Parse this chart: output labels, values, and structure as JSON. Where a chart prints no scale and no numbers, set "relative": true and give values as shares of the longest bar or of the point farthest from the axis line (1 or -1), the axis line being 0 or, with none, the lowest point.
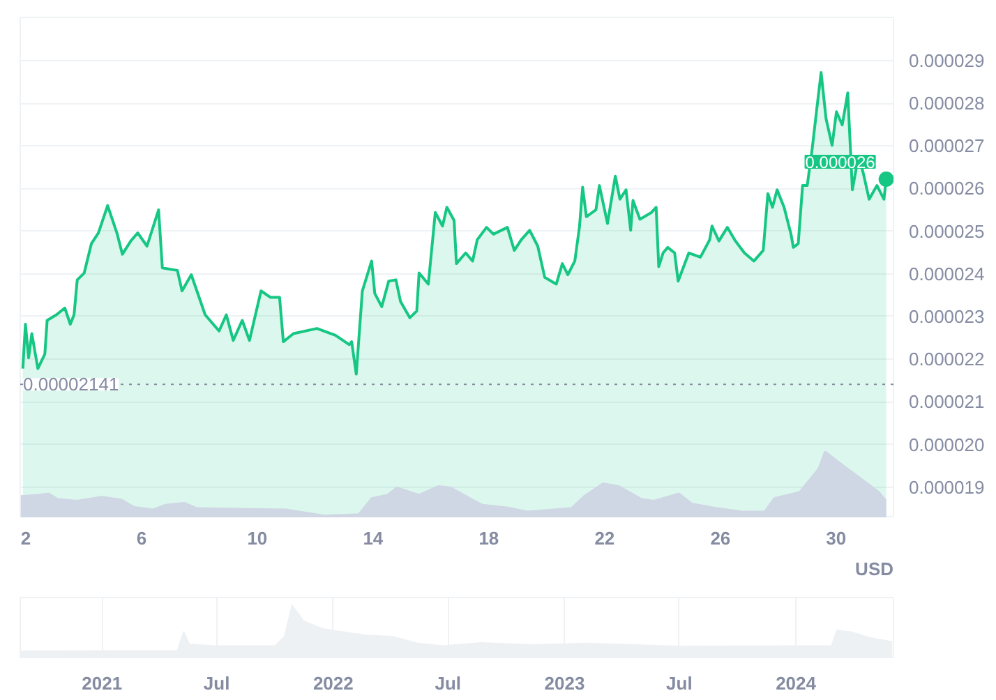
{
  "chart_data": [
    {
      "type": "area",
      "annotations": [
        "USD",
        {
          "text": "0.000026",
          "x": 31.73,
          "y": 2.622e-05
        }
      ],
      "x": [
        1.9,
        1.99,
        2.1,
        2.21,
        2.42,
        2.66,
        2.74,
        3.06,
        3.35,
        3.54,
        3.67,
        3.78,
        4.02,
        4.27,
        4.51,
        4.83,
        5.15,
        5.34,
        5.63,
        5.87,
        6.19,
        6.59,
        6.72,
        7.24,
        7.4,
        7.72,
        8.2,
        8.68,
        8.93,
        9.17,
        9.48,
        9.73,
        10.13,
        10.45,
        10.77,
        10.9,
        11.25,
        12.06,
        12.7,
        13.18,
        13.26,
        13.42,
        13.63,
        13.95,
        14.06,
        14.3,
        14.54,
        14.79,
        14.95,
        15.27,
        15.51,
        15.59,
        15.91,
        16.15,
        16.4,
        16.55,
        16.8,
        16.88,
        17.2,
        17.44,
        17.6,
        17.92,
        18.16,
        18.64,
        18.88,
        19.12,
        19.41,
        19.69,
        19.93,
        20.33,
        20.54,
        20.73,
        20.97,
        21.13,
        21.24,
        21.37,
        21.7,
        21.82,
        22.1,
        22.37,
        22.53,
        22.74,
        22.9,
        22.98,
        23.22,
        23.62,
        23.78,
        23.87,
        24.02,
        24.18,
        24.42,
        24.54,
        24.91,
        25.31,
        25.63,
        25.71,
        25.95,
        26.24,
        26.52,
        26.83,
        27.16,
        27.48,
        27.64,
        27.8,
        27.96,
        28.2,
        28.44,
        28.52,
        28.69,
        28.84,
        29.0,
        29.17,
        29.33,
        29.48,
        29.65,
        29.86,
        30.01,
        30.21,
        30.4,
        30.56,
        30.77,
        30.93,
        31.14,
        31.41,
        31.65,
        31.73
      ],
      "series": [
        {
          "color": "#16c784",
          "values": [
            2.178e-05,
            2.282e-05,
            2.203e-05,
            2.26e-05,
            2.178e-05,
            2.212e-05,
            2.291e-05,
            2.304e-05,
            2.32e-05,
            2.282e-05,
            2.304e-05,
            2.386e-05,
            2.402e-05,
            2.471e-05,
            2.496e-05,
            2.56e-05,
            2.496e-05,
            2.446e-05,
            2.477e-05,
            2.496e-05,
            2.465e-05,
            2.55e-05,
            2.414e-05,
            2.408e-05,
            2.36e-05,
            2.398e-05,
            2.304e-05,
            2.266e-05,
            2.304e-05,
            2.244e-05,
            2.291e-05,
            2.244e-05,
            2.36e-05,
            2.345e-05,
            2.345e-05,
            2.241e-05,
            2.26e-05,
            2.272e-05,
            2.256e-05,
            2.234e-05,
            2.241e-05,
            2.165e-05,
            2.36e-05,
            2.43e-05,
            2.354e-05,
            2.323e-05,
            2.383e-05,
            2.386e-05,
            2.335e-05,
            2.297e-05,
            2.313e-05,
            2.402e-05,
            2.376e-05,
            2.544e-05,
            2.512e-05,
            2.556e-05,
            2.525e-05,
            2.424e-05,
            2.449e-05,
            2.43e-05,
            2.48e-05,
            2.509e-05,
            2.493e-05,
            2.509e-05,
            2.455e-05,
            2.48e-05,
            2.502e-05,
            2.465e-05,
            2.392e-05,
            2.376e-05,
            2.424e-05,
            2.398e-05,
            2.43e-05,
            2.509e-05,
            2.603e-05,
            2.534e-05,
            2.55e-05,
            2.607e-05,
            2.518e-05,
            2.629e-05,
            2.575e-05,
            2.597e-05,
            2.502e-05,
            2.572e-05,
            2.528e-05,
            2.544e-05,
            2.556e-05,
            2.417e-05,
            2.449e-05,
            2.462e-05,
            2.449e-05,
            2.383e-05,
            2.449e-05,
            2.439e-05,
            2.48e-05,
            2.512e-05,
            2.477e-05,
            2.509e-05,
            2.477e-05,
            2.449e-05,
            2.43e-05,
            2.455e-05,
            2.588e-05,
            2.556e-05,
            2.597e-05,
            2.556e-05,
            2.493e-05,
            2.462e-05,
            2.471e-05,
            2.607e-05,
            2.607e-05,
            2.692e-05,
            2.786e-05,
            2.872e-05,
            2.764e-05,
            2.701e-05,
            2.78e-05,
            2.749e-05,
            2.824e-05,
            2.597e-05,
            2.676e-05,
            2.638e-05,
            2.575e-05,
            2.607e-05,
            2.575e-05,
            2.622e-05
          ]
        }
      ],
      "xlim": [
        1.81,
        31.98
      ],
      "xticks": [
        2,
        6,
        10,
        14,
        18,
        22,
        26,
        30
      ],
      "ylim": [
        1.831e-05,
        3.001e-05
      ],
      "yticks": [
        {
          "value": 1.9e-05,
          "label": "0.000019"
        },
        {
          "value": 2e-05,
          "label": "0.000020"
        },
        {
          "value": 2.1e-05,
          "label": "0.000021"
        },
        {
          "value": 2.2e-05,
          "label": "0.000022"
        },
        {
          "value": 2.3e-05,
          "label": "0.000023"
        },
        {
          "value": 2.4e-05,
          "label": "0.000024"
        },
        {
          "value": 2.5e-05,
          "label": "0.000025"
        },
        {
          "value": 2.6e-05,
          "label": "0.000026"
        },
        {
          "value": 2.7e-05,
          "label": "0.000027"
        },
        {
          "value": 2.8e-05,
          "label": "0.000028"
        },
        {
          "value": 2.9e-05,
          "label": "0.000029"
        }
      ],
      "ref_lines": [
        {
          "axis": "y",
          "value": 2.141e-05,
          "label": "0.00002141",
          "color": "#858ca2",
          "line_style": "dotted"
        }
      ],
      "grid": "y"
    },
    {
      "type": "area",
      "relative": true,
      "xlim": [
        1.81,
        31.98
      ],
      "x": [
        1.83,
        2.45,
        2.78,
        3.1,
        3.76,
        4.64,
        5.3,
        5.73,
        6.39,
        6.83,
        7.48,
        7.92,
        9.46,
        10.99,
        11.87,
        12.3,
        13.51,
        13.95,
        14.5,
        14.82,
        15.59,
        16.25,
        16.68,
        17.34,
        17.78,
        18.66,
        19.32,
        20.85,
        21.29,
        21.94,
        22.49,
        23.26,
        23.7,
        24.57,
        25.01,
        25.88,
        26.76,
        27.53,
        27.86,
        28.73,
        29.39,
        29.61,
        30.27,
        30.93,
        31.48,
        31.73
      ],
      "series": [
        {
          "color": "#cfd6e4",
          "values": [
            0.33,
            0.35,
            0.37,
            0.29,
            0.26,
            0.32,
            0.28,
            0.17,
            0.13,
            0.2,
            0.23,
            0.15,
            0.14,
            0.13,
            0.07,
            0.04,
            0.06,
            0.3,
            0.35,
            0.46,
            0.35,
            0.48,
            0.46,
            0.3,
            0.2,
            0.16,
            0.1,
            0.15,
            0.33,
            0.52,
            0.48,
            0.29,
            0.26,
            0.37,
            0.22,
            0.15,
            0.1,
            0.1,
            0.3,
            0.39,
            0.74,
            1.0,
            0.78,
            0.57,
            0.39,
            0.26
          ]
        }
      ]
    },
    {
      "type": "area",
      "relative": true,
      "x": [
        "2020-08-25",
        "2021-04-30",
        "2021-05-10",
        "2021-05-19",
        "2021-06-29",
        "2021-10-01",
        "2021-10-16",
        "2021-10-28",
        "2021-11-15",
        "2021-12-15",
        "2022-01-15",
        "2022-02-24",
        "2022-04-04",
        "2022-05-14",
        "2022-06-23",
        "2022-08-22",
        "2022-11-10",
        "2023-02-06",
        "2023-07-05",
        "2024-01-03",
        "2024-02-26",
        "2024-03-06",
        "2024-03-31",
        "2024-04-29",
        "2024-06-01"
      ],
      "series": [
        {
          "color": "#eef1f4",
          "values": [
            0.12,
            0.13,
            0.49,
            0.25,
            0.22,
            0.22,
            0.4,
            1.0,
            0.7,
            0.55,
            0.49,
            0.42,
            0.4,
            0.27,
            0.22,
            0.28,
            0.24,
            0.27,
            0.21,
            0.22,
            0.22,
            0.52,
            0.48,
            0.37,
            0.3
          ]
        }
      ],
      "xlim": [
        "2020-08-25",
        "2024-06-03"
      ],
      "xticks": [
        {
          "value": "2021-01-01",
          "label": "2021"
        },
        {
          "value": "2021-07-01",
          "label": "Jul"
        },
        {
          "value": "2022-01-01",
          "label": "2022"
        },
        {
          "value": "2022-07-01",
          "label": "Jul"
        },
        {
          "value": "2023-01-01",
          "label": "2023"
        },
        {
          "value": "2023-07-01",
          "label": "Jul"
        },
        {
          "value": "2024-01-01",
          "label": "2024"
        }
      ],
      "grid": "x"
    }
  ]
}
